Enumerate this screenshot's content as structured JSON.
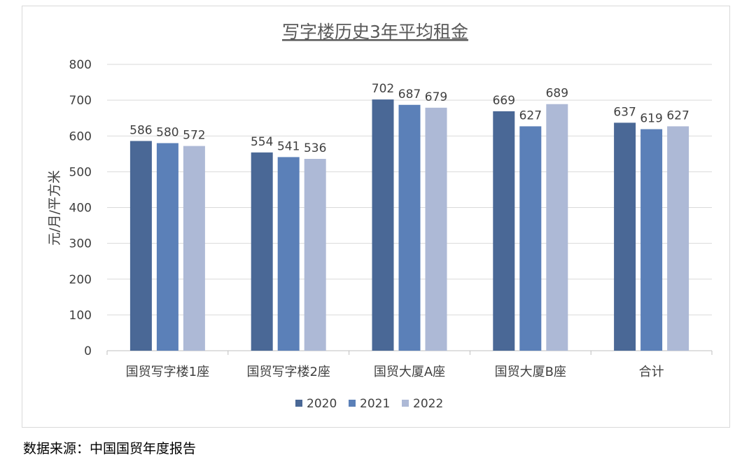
{
  "chart_data": {
    "type": "bar",
    "title": "写字楼历史3年平均租金",
    "ylabel": "元/月/平方米",
    "xlabel": "",
    "categories": [
      "国贸写字楼1座",
      "国贸写字楼2座",
      "国贸大厦A座",
      "国贸大厦B座",
      "合计"
    ],
    "series": [
      {
        "name": "2020",
        "color": "#4a6896",
        "values": [
          586,
          554,
          702,
          669,
          637
        ]
      },
      {
        "name": "2021",
        "color": "#5b80b8",
        "values": [
          580,
          541,
          687,
          627,
          619
        ]
      },
      {
        "name": "2022",
        "color": "#adb9d6",
        "values": [
          572,
          536,
          679,
          689,
          627
        ]
      }
    ],
    "ylim": [
      0,
      800
    ],
    "yticks": [
      0,
      100,
      200,
      300,
      400,
      500,
      600,
      700,
      800
    ],
    "grid": true,
    "legend_position": "bottom",
    "data_labels": true
  },
  "source_note": "数据来源：中国国贸年度报告"
}
